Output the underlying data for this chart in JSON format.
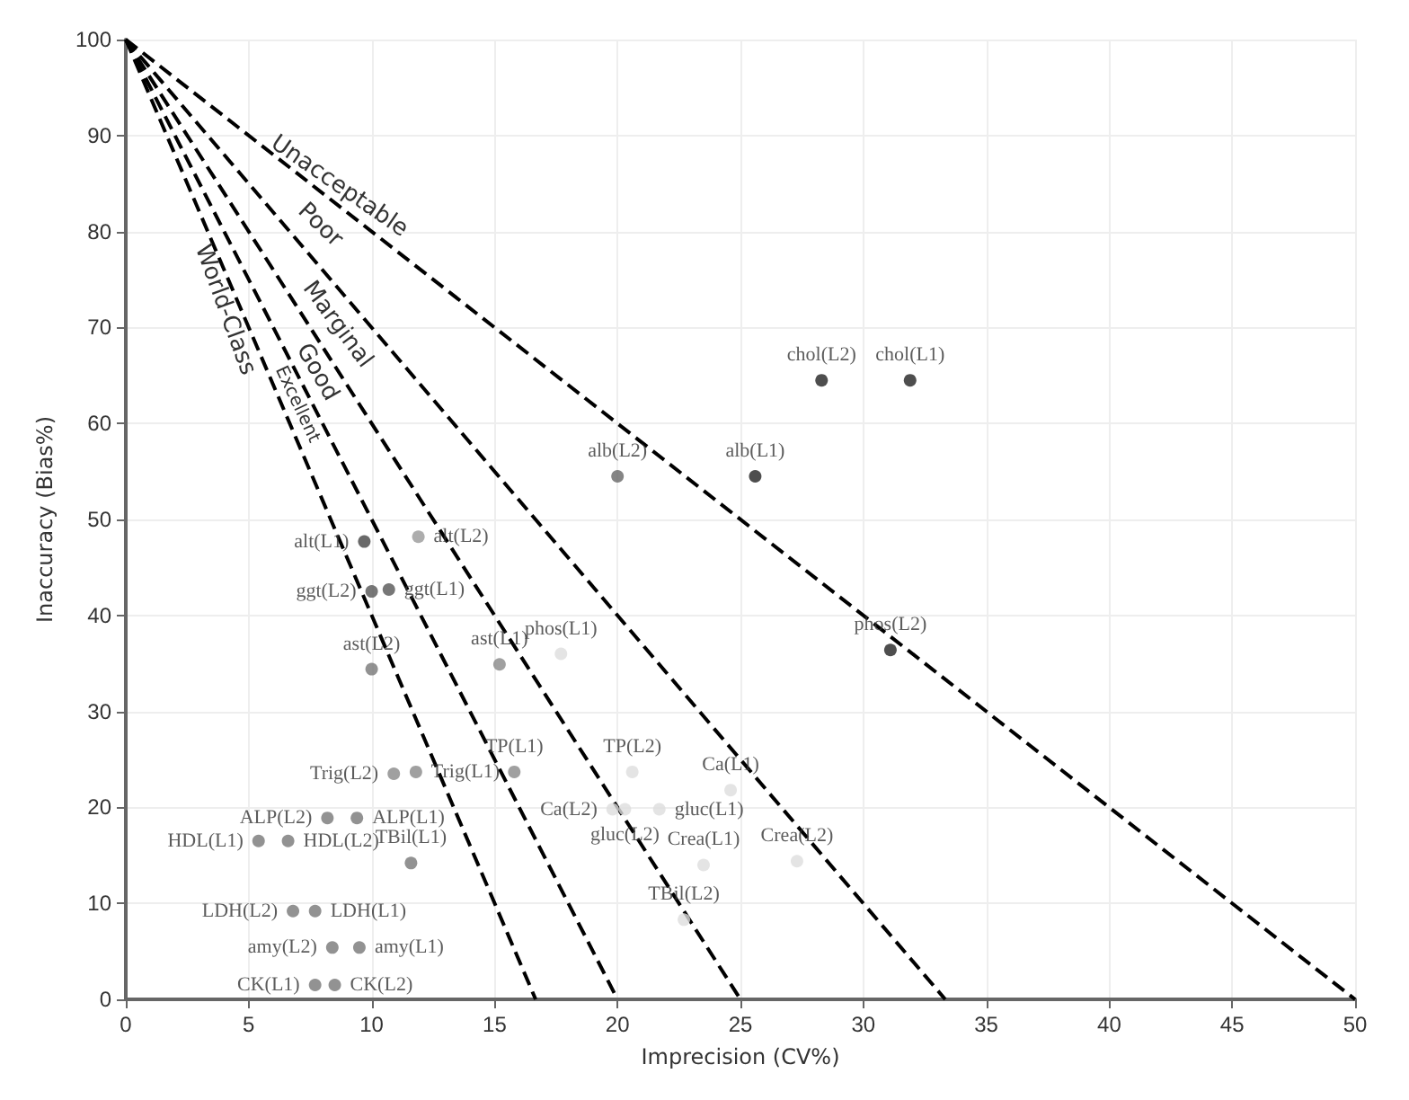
{
  "chart_data": {
    "type": "scatter",
    "xlabel": "Imprecision (CV%)",
    "ylabel": "Inaccuracy (Bias%)",
    "xlim": [
      0,
      50
    ],
    "ylim": [
      0,
      100
    ],
    "xticks": [
      0,
      5,
      10,
      15,
      20,
      25,
      30,
      35,
      40,
      45,
      50
    ],
    "yticks": [
      0,
      10,
      20,
      30,
      40,
      50,
      60,
      70,
      80,
      90,
      100
    ],
    "grid": true,
    "marker": "circle",
    "legend": false,
    "series": [
      {
        "type": "line",
        "line_style": "dashed",
        "marker": "none",
        "color": "#000000",
        "x": [
          0,
          16.67
        ],
        "values": [
          100,
          0
        ]
      },
      {
        "type": "line",
        "line_style": "dashed",
        "marker": "none",
        "color": "#000000",
        "x": [
          0,
          20
        ],
        "values": [
          100,
          0
        ]
      },
      {
        "type": "line",
        "line_style": "dashed",
        "marker": "none",
        "color": "#000000",
        "x": [
          0,
          25
        ],
        "values": [
          100,
          0
        ]
      },
      {
        "type": "line",
        "line_style": "dashed",
        "marker": "none",
        "color": "#000000",
        "x": [
          0,
          33.33
        ],
        "values": [
          100,
          0
        ]
      },
      {
        "type": "line",
        "line_style": "dashed",
        "marker": "none",
        "color": "#000000",
        "x": [
          0,
          50
        ],
        "values": [
          100,
          0
        ]
      },
      {
        "name": "chol(L2)",
        "color": "#222222",
        "x": [
          28.3
        ],
        "values": [
          64.5
        ]
      },
      {
        "name": "chol(L1)",
        "color": "#222222",
        "x": [
          31.9
        ],
        "values": [
          64.5
        ]
      },
      {
        "name": "alb(L2)",
        "color": "#666666",
        "x": [
          20.0
        ],
        "values": [
          54.5
        ]
      },
      {
        "name": "alb(L1)",
        "color": "#222222",
        "x": [
          25.6
        ],
        "values": [
          54.5
        ]
      },
      {
        "name": "alt(L1)",
        "color": "#444444",
        "x": [
          9.7
        ],
        "values": [
          47.7
        ]
      },
      {
        "name": "alt(L2)",
        "color": "#999999",
        "x": [
          11.9
        ],
        "values": [
          48.2
        ]
      },
      {
        "name": "ggt(L1)",
        "color": "#555555",
        "x": [
          10.7
        ],
        "values": [
          42.7
        ]
      },
      {
        "name": "ggt(L2)",
        "color": "#555555",
        "x": [
          10.0
        ],
        "values": [
          42.5
        ]
      },
      {
        "name": "ast(L2)",
        "color": "#777777",
        "x": [
          10.0
        ],
        "values": [
          34.4
        ]
      },
      {
        "name": "ast(L1)",
        "color": "#888888",
        "x": [
          15.2
        ],
        "values": [
          34.9
        ]
      },
      {
        "name": "phos(L1)",
        "color": "#dddddd",
        "x": [
          17.7
        ],
        "values": [
          36.0
        ]
      },
      {
        "name": "phos(L2)",
        "color": "#222222",
        "x": [
          31.1
        ],
        "values": [
          36.4
        ]
      },
      {
        "name": "Trig(L2)",
        "color": "#888888",
        "x": [
          10.9
        ],
        "values": [
          23.5
        ]
      },
      {
        "name": "Trig(L1)",
        "color": "#888888",
        "x": [
          11.8
        ],
        "values": [
          23.7
        ]
      },
      {
        "name": "TP(L1)",
        "color": "#888888",
        "x": [
          15.8
        ],
        "values": [
          23.7
        ]
      },
      {
        "name": "TP(L2)",
        "color": "#dddddd",
        "x": [
          20.6
        ],
        "values": [
          23.7
        ]
      },
      {
        "name": "Ca(L2)",
        "color": "#dddddd",
        "x": [
          19.8
        ],
        "values": [
          19.8
        ]
      },
      {
        "name": "gluc(L1)",
        "color": "#dddddd",
        "x": [
          21.7
        ],
        "values": [
          19.8
        ]
      },
      {
        "name": "Ca(L1)",
        "color": "#dddddd",
        "x": [
          24.6
        ],
        "values": [
          21.8
        ]
      },
      {
        "name": "gluc(L2)",
        "color": "#dddddd",
        "x": [
          20.3
        ],
        "values": [
          19.8
        ]
      },
      {
        "name": "Crea(L1)",
        "color": "#dddddd",
        "x": [
          23.5
        ],
        "values": [
          14.0
        ]
      },
      {
        "name": "Crea(L2)",
        "color": "#dddddd",
        "x": [
          27.3
        ],
        "values": [
          14.4
        ]
      },
      {
        "name": "TBil(L2)",
        "color": "#dddddd",
        "x": [
          22.7
        ],
        "values": [
          8.3
        ]
      },
      {
        "name": "TBil(L1)",
        "color": "#777777",
        "x": [
          11.6
        ],
        "values": [
          14.2
        ]
      },
      {
        "name": "ALP(L2)",
        "color": "#777777",
        "x": [
          8.2
        ],
        "values": [
          18.9
        ]
      },
      {
        "name": "ALP(L1)",
        "color": "#777777",
        "x": [
          9.4
        ],
        "values": [
          18.9
        ]
      },
      {
        "name": "HDL(L1)",
        "color": "#777777",
        "x": [
          5.4
        ],
        "values": [
          16.5
        ]
      },
      {
        "name": "HDL(L2)",
        "color": "#777777",
        "x": [
          6.6
        ],
        "values": [
          16.5
        ]
      },
      {
        "name": "LDH(L2)",
        "color": "#777777",
        "x": [
          6.8
        ],
        "values": [
          9.2
        ]
      },
      {
        "name": "LDH(L1)",
        "color": "#777777",
        "x": [
          7.7
        ],
        "values": [
          9.2
        ]
      },
      {
        "name": "amy(L2)",
        "color": "#777777",
        "x": [
          8.4
        ],
        "values": [
          5.4
        ]
      },
      {
        "name": "amy(L1)",
        "color": "#777777",
        "x": [
          9.5
        ],
        "values": [
          5.4
        ]
      },
      {
        "name": "CK(L1)",
        "color": "#777777",
        "x": [
          7.7
        ],
        "values": [
          1.5
        ]
      },
      {
        "name": "CK(L2)",
        "color": "#777777",
        "x": [
          8.5
        ],
        "values": [
          1.5
        ]
      }
    ],
    "annotations": [
      "World-Class",
      "Excellent",
      "Good",
      "Marginal",
      "Poor",
      "Unacceptable"
    ]
  }
}
